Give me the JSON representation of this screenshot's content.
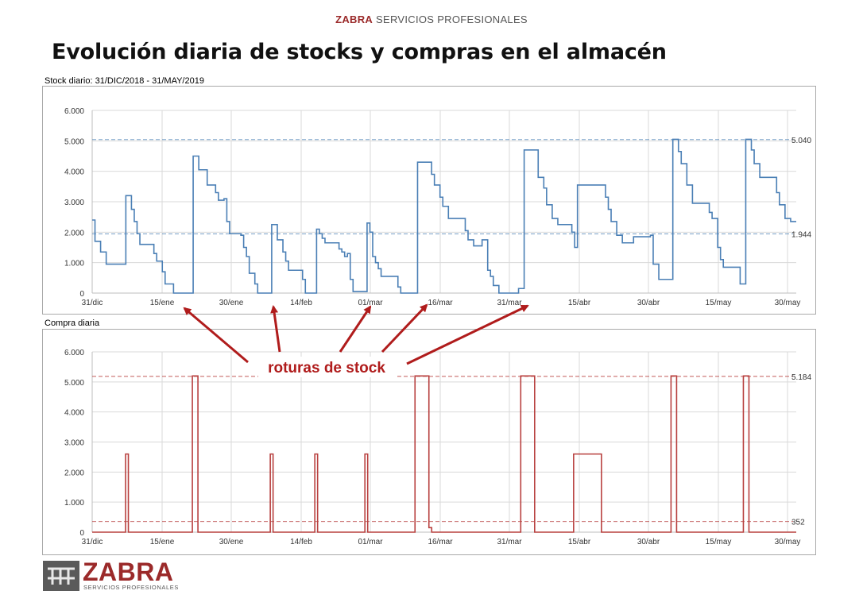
{
  "header": {
    "brand_name": "ZABRA",
    "brand_tagline": "SERVICIOS PROFESIONALES"
  },
  "title": "Evolución diaria de stocks y compras en el almacén",
  "annotation": {
    "text": "roturas de stock",
    "color": "#b01c1c"
  },
  "footer_logo": {
    "name": "ZABRA",
    "tagline": "SERVICIOS PROFESIONALES"
  },
  "colors": {
    "stock_line": "#4a7fb5",
    "purchase_line": "#b8403f",
    "grid": "#d9d9d9"
  },
  "chart_data": [
    {
      "type": "line",
      "title": "Stock diario: 31/DIC/2018 - 31/MAY/2019",
      "x_tick_labels": [
        "31/dic",
        "15/ene",
        "30/ene",
        "14/feb",
        "01/mar",
        "16/mar",
        "31/mar",
        "15/abr",
        "30/abr",
        "15/may",
        "30/may"
      ],
      "y_tick_labels": [
        "0",
        "1.000",
        "2.000",
        "3.000",
        "4.000",
        "5.000",
        "6.000"
      ],
      "ylim": [
        0,
        6000
      ],
      "reference_lines": [
        {
          "value": 5040,
          "label": "5.040"
        },
        {
          "value": 1944,
          "label": "1.944"
        }
      ],
      "grid": true,
      "series": [
        {
          "values": [
            2400,
            1700,
            1700,
            1350,
            1350,
            950,
            950,
            950,
            950,
            950,
            950,
            950,
            3200,
            3200,
            2750,
            2350,
            1950,
            1600,
            1600,
            1600,
            1600,
            1600,
            1300,
            1050,
            1050,
            700,
            300,
            300,
            300,
            0,
            0,
            0,
            0,
            0,
            0,
            0,
            4500,
            4500,
            4050,
            4050,
            4050,
            3550,
            3550,
            3550,
            3300,
            3050,
            3050,
            3100,
            2350,
            1950,
            1950,
            1950,
            1950,
            1900,
            1500,
            1200,
            650,
            650,
            300,
            0,
            0,
            0,
            0,
            0,
            2250,
            2250,
            1750,
            1750,
            1350,
            1050,
            750,
            750,
            750,
            750,
            750,
            450,
            0,
            0,
            0,
            0,
            2100,
            1950,
            1800,
            1650,
            1650,
            1650,
            1650,
            1650,
            1450,
            1350,
            1200,
            1300,
            450,
            50,
            50,
            50,
            50,
            50,
            2300,
            2000,
            1200,
            1000,
            800,
            550,
            550,
            550,
            550,
            550,
            550,
            200,
            0,
            0,
            0,
            0,
            0,
            0,
            4300,
            4300,
            4300,
            4300,
            4300,
            3900,
            3550,
            3550,
            3150,
            2850,
            2850,
            2450,
            2450,
            2450,
            2450,
            2450,
            2450,
            2050,
            1750,
            1750,
            1550,
            1550,
            1550,
            1750,
            1750,
            750,
            550,
            250,
            250,
            0,
            0,
            0,
            0,
            0,
            0,
            0,
            150,
            150,
            4700,
            4700,
            4700,
            4700,
            4700,
            3800,
            3800,
            3450,
            2900,
            2900,
            2450,
            2450,
            2250,
            2250,
            2250,
            2250,
            2250,
            2000,
            1500,
            3550,
            3550,
            3550,
            3550,
            3550,
            3550,
            3550,
            3550,
            3550,
            3550,
            3150,
            2750,
            2350,
            2350,
            1900,
            1900,
            1650,
            1650,
            1650,
            1650,
            1850,
            1850,
            1850,
            1850,
            1850,
            1850,
            1900,
            950,
            950,
            450,
            450,
            450,
            450,
            450,
            5050,
            5050,
            4650,
            4250,
            4250,
            3550,
            3550,
            2950,
            2950,
            2950,
            2950,
            2950,
            2950,
            2650,
            2450,
            2450,
            1500,
            1100,
            850,
            850,
            850,
            850,
            850,
            850,
            300,
            300,
            5050,
            5050,
            4700,
            4250,
            4250,
            3800,
            3800,
            3800,
            3800,
            3800,
            3800,
            3300,
            2900,
            2900,
            2450,
            2450,
            2350,
            2350
          ]
        }
      ]
    },
    {
      "type": "line",
      "title": "Compra diaria",
      "x_tick_labels": [
        "31/dic",
        "15/ene",
        "30/ene",
        "14/feb",
        "01/mar",
        "16/mar",
        "31/mar",
        "15/abr",
        "30/abr",
        "15/may",
        "30/may"
      ],
      "y_tick_labels": [
        "0",
        "1.000",
        "2.000",
        "3.000",
        "4.000",
        "5.000",
        "6.000"
      ],
      "ylim": [
        0,
        6000
      ],
      "reference_lines": [
        {
          "value": 5184,
          "label": "5.184"
        },
        {
          "value": 352,
          "label": "352"
        }
      ],
      "grid": true,
      "series": [
        {
          "values": [
            0,
            0,
            0,
            0,
            0,
            0,
            0,
            0,
            0,
            0,
            0,
            0,
            2600,
            0,
            0,
            0,
            0,
            0,
            0,
            0,
            0,
            0,
            0,
            0,
            0,
            0,
            0,
            0,
            0,
            0,
            0,
            0,
            0,
            0,
            0,
            0,
            5200,
            5200,
            0,
            0,
            0,
            0,
            0,
            0,
            0,
            0,
            0,
            0,
            0,
            0,
            0,
            0,
            0,
            0,
            0,
            0,
            0,
            0,
            0,
            0,
            0,
            0,
            0,
            0,
            2600,
            0,
            0,
            0,
            0,
            0,
            0,
            0,
            0,
            0,
            0,
            0,
            0,
            0,
            0,
            0,
            2600,
            0,
            0,
            0,
            0,
            0,
            0,
            0,
            0,
            0,
            0,
            0,
            0,
            0,
            0,
            0,
            0,
            0,
            2600,
            0,
            0,
            0,
            0,
            0,
            0,
            0,
            0,
            0,
            0,
            0,
            0,
            0,
            0,
            0,
            0,
            0,
            5200,
            5200,
            5200,
            5200,
            5200,
            150,
            0,
            0,
            0,
            0,
            0,
            0,
            0,
            0,
            0,
            0,
            0,
            0,
            0,
            0,
            0,
            0,
            0,
            0,
            0,
            0,
            0,
            0,
            0,
            0,
            0,
            0,
            0,
            0,
            0,
            0,
            0,
            0,
            5200,
            5200,
            5200,
            5200,
            5200,
            0,
            0,
            0,
            0,
            0,
            0,
            0,
            0,
            0,
            0,
            0,
            0,
            0,
            0,
            2600,
            2600,
            2600,
            2600,
            2600,
            2600,
            2600,
            2600,
            2600,
            2600,
            0,
            0,
            0,
            0,
            0,
            0,
            0,
            0,
            0,
            0,
            0,
            0,
            0,
            0,
            0,
            0,
            0,
            0,
            0,
            0,
            0,
            0,
            0,
            0,
            0,
            5200,
            5200,
            0,
            0,
            0,
            0,
            0,
            0,
            0,
            0,
            0,
            0,
            0,
            0,
            0,
            0,
            0,
            0,
            0,
            0,
            0,
            0,
            0,
            0,
            0,
            0,
            5200,
            5200,
            0,
            0,
            0,
            0,
            0,
            0,
            0,
            0,
            0,
            0,
            0,
            0,
            0,
            0,
            0,
            0,
            0
          ]
        }
      ]
    }
  ]
}
